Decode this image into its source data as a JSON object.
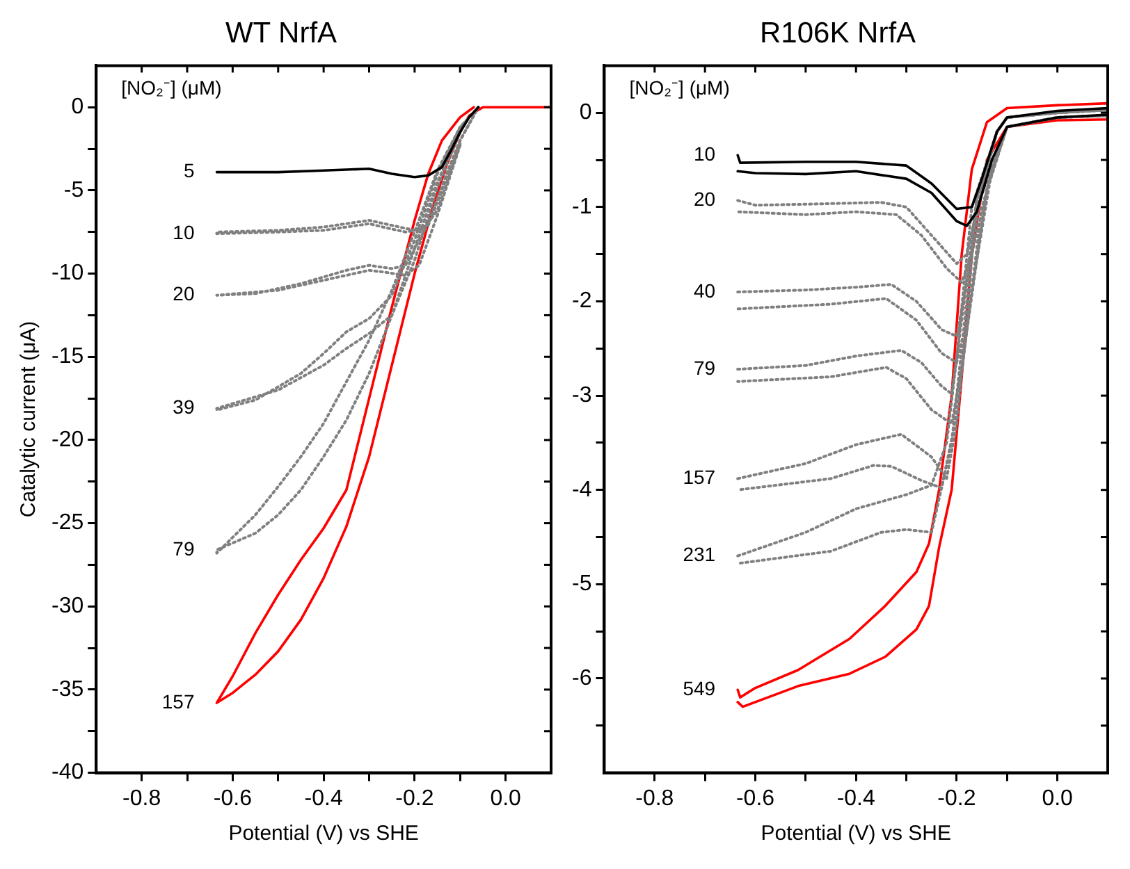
{
  "chart_data": [
    {
      "type": "line",
      "title": "WT NrfA",
      "xlabel": "Potential (V) vs SHE",
      "ylabel": "Catalytic current (μA)",
      "legend_title": "[NO₂⁻] (μM)",
      "grid": false,
      "xlim": [
        -0.9,
        0.1
      ],
      "xticks": [
        {
          "value": -0.8,
          "label": "-0.8"
        },
        {
          "value": -0.7,
          "label": null
        },
        {
          "value": -0.6,
          "label": "-0.6"
        },
        {
          "value": -0.5,
          "label": null
        },
        {
          "value": -0.4,
          "label": "-0.4"
        },
        {
          "value": -0.3,
          "label": null
        },
        {
          "value": -0.2,
          "label": "-0.2"
        },
        {
          "value": -0.1,
          "label": null
        },
        {
          "value": 0,
          "label": "0.0"
        }
      ],
      "ylim": [
        -40,
        2.5
      ],
      "yticks": [
        -40,
        {
          "value": -37.5,
          "label": null
        },
        -35,
        {
          "value": -32.5,
          "label": null
        },
        -30,
        {
          "value": -27.5,
          "label": null
        },
        -25,
        {
          "value": -22.5,
          "label": null
        },
        -20,
        {
          "value": -17.5,
          "label": null
        },
        -15,
        {
          "value": -12.5,
          "label": null
        },
        -10,
        {
          "value": -7.5,
          "label": null
        },
        -5,
        {
          "value": -2.5,
          "label": null
        },
        0
      ],
      "series": [
        {
          "name": "5",
          "color": "#000000",
          "line_style": "solid",
          "x": [
            -0.635,
            -0.5,
            -0.4,
            -0.3,
            -0.25,
            -0.2,
            -0.17,
            -0.14,
            -0.12,
            -0.1,
            -0.08,
            -0.06
          ],
          "values": [
            -3.9,
            -3.9,
            -3.8,
            -3.7,
            -4,
            -4.2,
            -4.1,
            -3.6,
            -2.6,
            -1.5,
            -0.6,
            0
          ]
        },
        {
          "name": "10",
          "color": "#808080",
          "line_style": "dotted",
          "x": [
            -0.1,
            -0.15,
            -0.18,
            -0.22,
            -0.27,
            -0.3,
            -0.4,
            -0.5,
            -0.635,
            -0.635,
            -0.5,
            -0.4,
            -0.3,
            -0.25,
            -0.2,
            -0.17,
            -0.14,
            -0.1,
            -0.06
          ],
          "values": [
            -2.2,
            -6.2,
            -7.3,
            -7.5,
            -7.2,
            -7,
            -7.4,
            -7.5,
            -7.6,
            -7.5,
            -7.4,
            -7.2,
            -6.8,
            -7.1,
            -7.4,
            -7.1,
            -5,
            -2,
            0
          ]
        },
        {
          "name": "20",
          "color": "#808080",
          "line_style": "dotted",
          "x": [
            -0.1,
            -0.15,
            -0.19,
            -0.22,
            -0.27,
            -0.3,
            -0.4,
            -0.5,
            -0.635,
            -0.635,
            -0.55,
            -0.45,
            -0.35,
            -0.3,
            -0.25,
            -0.22,
            -0.17,
            -0.13,
            -0.1,
            -0.06
          ],
          "values": [
            -2.3,
            -6.5,
            -9.5,
            -10.1,
            -9.9,
            -9.8,
            -10.4,
            -11,
            -11.3,
            -11.3,
            -11.2,
            -10.6,
            -9.8,
            -9.5,
            -9.7,
            -9.5,
            -7,
            -4,
            -2,
            0
          ]
        },
        {
          "name": "39",
          "color": "#808080",
          "line_style": "dotted",
          "x": [
            -0.1,
            -0.15,
            -0.2,
            -0.25,
            -0.3,
            -0.35,
            -0.4,
            -0.5,
            -0.635,
            -0.635,
            -0.55,
            -0.45,
            -0.4,
            -0.35,
            -0.3,
            -0.25,
            -0.2,
            -0.15,
            -0.1,
            -0.06
          ],
          "values": [
            -1.5,
            -4.8,
            -9.2,
            -12.5,
            -13.6,
            -14.5,
            -15.5,
            -17,
            -18.1,
            -18.2,
            -17.6,
            -16,
            -14.8,
            -13.5,
            -12.7,
            -11.3,
            -8,
            -4,
            -1.2,
            0
          ]
        },
        {
          "name": "79",
          "color": "#808080",
          "line_style": "dotted",
          "x": [
            -0.1,
            -0.15,
            -0.2,
            -0.25,
            -0.3,
            -0.35,
            -0.4,
            -0.45,
            -0.5,
            -0.55,
            -0.635,
            -0.635,
            -0.55,
            -0.5,
            -0.45,
            -0.4,
            -0.35,
            -0.3,
            -0.25,
            -0.2,
            -0.15,
            -0.1,
            -0.06
          ],
          "values": [
            -1.5,
            -4.5,
            -8.5,
            -12.5,
            -16,
            -18.8,
            -21,
            -23,
            -24.5,
            -25.6,
            -26.6,
            -26.8,
            -24.5,
            -22.8,
            -21,
            -19,
            -16.5,
            -14,
            -11,
            -7.5,
            -3.8,
            -1.2,
            0
          ]
        },
        {
          "name": "157",
          "color": "#ff0000",
          "line_style": "solid",
          "x": [
            -0.07,
            -0.1,
            -0.14,
            -0.17,
            -0.2,
            -0.25,
            -0.3,
            -0.35,
            -0.4,
            -0.45,
            -0.5,
            -0.55,
            -0.6,
            -0.635,
            -0.6,
            -0.55,
            -0.5,
            -0.45,
            -0.4,
            -0.35,
            -0.3,
            -0.25,
            -0.2,
            -0.16,
            -0.13,
            -0.1,
            -0.08,
            -0.05,
            0,
            0.1
          ],
          "values": [
            0,
            -0.6,
            -2,
            -4,
            -6.8,
            -12,
            -17.5,
            -23,
            -25.3,
            -27.2,
            -29.3,
            -31.6,
            -34.2,
            -35.8,
            -35.2,
            -34.1,
            -32.7,
            -30.8,
            -28.3,
            -25.2,
            -21,
            -15.5,
            -10,
            -6,
            -3.5,
            -1.5,
            -0.5,
            0,
            0,
            0
          ]
        }
      ]
    },
    {
      "type": "line",
      "title": "R106K NrfA",
      "xlabel": "Potential (V) vs SHE",
      "legend_title": "[NO₂⁻] (μM)",
      "grid": false,
      "xlim": [
        -0.9,
        0.1
      ],
      "xticks": [
        {
          "value": -0.8,
          "label": "-0.8"
        },
        {
          "value": -0.7,
          "label": null
        },
        {
          "value": -0.6,
          "label": "-0.6"
        },
        {
          "value": -0.5,
          "label": null
        },
        {
          "value": -0.4,
          "label": "-0.4"
        },
        {
          "value": -0.3,
          "label": null
        },
        {
          "value": -0.2,
          "label": "-0.2"
        },
        {
          "value": -0.1,
          "label": null
        },
        {
          "value": 0,
          "label": "0.0"
        }
      ],
      "ylim": [
        -7,
        0.5
      ],
      "yticks": [
        {
          "value": -6.5,
          "label": null
        },
        -6,
        {
          "value": -5.5,
          "label": null
        },
        -5,
        {
          "value": -4.5,
          "label": null
        },
        -4,
        {
          "value": -3.5,
          "label": null
        },
        -3,
        {
          "value": -2.5,
          "label": null
        },
        -2,
        {
          "value": -1.5,
          "label": null
        },
        -1,
        {
          "value": -0.5,
          "label": null
        },
        0
      ],
      "series": [
        {
          "name": "10",
          "color": "#000000",
          "line_style": "solid",
          "x": [
            -0.635,
            -0.63,
            -0.5,
            -0.4,
            -0.3,
            -0.25,
            -0.2,
            -0.17,
            -0.15,
            -0.12,
            -0.1,
            0,
            0.1,
            0.1,
            0,
            -0.1,
            -0.13,
            -0.16,
            -0.18,
            -0.2,
            -0.25,
            -0.3,
            -0.4,
            -0.5,
            -0.6,
            -0.635
          ],
          "values": [
            -0.45,
            -0.53,
            -0.52,
            -0.52,
            -0.56,
            -0.75,
            -1.02,
            -1,
            -0.7,
            -0.2,
            -0.05,
            0.02,
            0.05,
            -0.02,
            -0.05,
            -0.15,
            -0.5,
            -1.05,
            -1.2,
            -1.15,
            -0.85,
            -0.7,
            -0.62,
            -0.65,
            -0.64,
            -0.62
          ]
        },
        {
          "name": "20",
          "color": "#808080",
          "line_style": "dotted",
          "x": [
            -0.635,
            -0.6,
            -0.5,
            -0.35,
            -0.3,
            -0.25,
            -0.2,
            -0.18,
            -0.15,
            -0.12,
            -0.1,
            0,
            0.1,
            0.1,
            0,
            -0.1,
            -0.13,
            -0.17,
            -0.19,
            -0.22,
            -0.27,
            -0.32,
            -0.4,
            -0.5,
            -0.635
          ],
          "values": [
            -0.93,
            -0.98,
            -0.97,
            -0.95,
            -1,
            -1.3,
            -1.6,
            -1.5,
            -0.8,
            -0.2,
            -0.05,
            0,
            0.03,
            -0.03,
            -0.05,
            -0.15,
            -0.6,
            -1.5,
            -1.8,
            -1.65,
            -1.3,
            -1.08,
            -1.05,
            -1.08,
            -1.05
          ]
        },
        {
          "name": "40",
          "color": "#808080",
          "line_style": "dotted",
          "x": [
            -0.635,
            -0.5,
            -0.4,
            -0.33,
            -0.28,
            -0.23,
            -0.2,
            -0.18,
            -0.15,
            -0.12,
            -0.1,
            0,
            0.1,
            0.1,
            0,
            -0.1,
            -0.13,
            -0.18,
            -0.2,
            -0.23,
            -0.28,
            -0.34,
            -0.45,
            -0.635
          ],
          "values": [
            -1.9,
            -1.88,
            -1.85,
            -1.82,
            -2,
            -2.3,
            -2.37,
            -1.8,
            -0.8,
            -0.2,
            -0.05,
            0,
            0.03,
            -0.03,
            -0.05,
            -0.15,
            -0.6,
            -2.2,
            -2.65,
            -2.55,
            -2.2,
            -1.97,
            -2.03,
            -2.08
          ]
        },
        {
          "name": "79",
          "color": "#808080",
          "line_style": "dotted",
          "x": [
            -0.635,
            -0.5,
            -0.4,
            -0.31,
            -0.27,
            -0.23,
            -0.21,
            -0.19,
            -0.16,
            -0.12,
            -0.1,
            0,
            0.1,
            0.1,
            0,
            -0.1,
            -0.14,
            -0.19,
            -0.21,
            -0.25,
            -0.3,
            -0.34,
            -0.45,
            -0.635
          ],
          "values": [
            -2.72,
            -2.68,
            -2.58,
            -2.52,
            -2.65,
            -2.9,
            -2.98,
            -2.2,
            -0.9,
            -0.2,
            -0.05,
            0,
            0.03,
            -0.03,
            -0.05,
            -0.15,
            -0.8,
            -2.7,
            -3.3,
            -3.15,
            -2.82,
            -2.7,
            -2.8,
            -2.85
          ]
        },
        {
          "name": "157",
          "color": "#808080",
          "line_style": "dotted",
          "x": [
            -0.635,
            -0.5,
            -0.4,
            -0.31,
            -0.25,
            -0.22,
            -0.2,
            -0.18,
            -0.16,
            -0.12,
            -0.1,
            0,
            0.1,
            0.1,
            0,
            -0.1,
            -0.15,
            -0.2,
            -0.23,
            -0.27,
            -0.33,
            -0.365,
            -0.45,
            -0.635
          ],
          "values": [
            -3.88,
            -3.72,
            -3.52,
            -3.41,
            -3.65,
            -3.88,
            -3.3,
            -2.2,
            -0.9,
            -0.2,
            -0.05,
            0,
            0.03,
            -0.03,
            -0.05,
            -0.15,
            -1,
            -3.2,
            -3.98,
            -3.9,
            -3.75,
            -3.74,
            -3.88,
            -4
          ]
        },
        {
          "name": "231",
          "color": "#808080",
          "line_style": "dotted",
          "x": [
            -0.635,
            -0.5,
            -0.4,
            -0.3,
            -0.25,
            -0.22,
            -0.2,
            -0.17,
            -0.12,
            -0.1,
            0,
            0.1,
            0.1,
            0,
            -0.1,
            -0.16,
            -0.21,
            -0.25,
            -0.3,
            -0.35,
            -0.45,
            -0.635
          ],
          "values": [
            -4.7,
            -4.45,
            -4.2,
            -4.05,
            -3.95,
            -3.5,
            -2.6,
            -1,
            -0.2,
            -0.05,
            0,
            0.03,
            -0.03,
            -0.05,
            -0.15,
            -1,
            -3.5,
            -4.45,
            -4.42,
            -4.45,
            -4.65,
            -4.78
          ]
        },
        {
          "name": "549",
          "color": "#ff0000",
          "line_style": "solid",
          "x": [
            -0.635,
            -0.63,
            -0.6,
            -0.515,
            -0.413,
            -0.342,
            -0.28,
            -0.255,
            -0.235,
            -0.21,
            -0.19,
            -0.17,
            -0.14,
            -0.1,
            0,
            0.1,
            0.1,
            0,
            -0.1,
            -0.14,
            -0.17,
            -0.19,
            -0.21,
            -0.235,
            -0.255,
            -0.28,
            -0.342,
            -0.413,
            -0.515,
            -0.625,
            -0.635
          ],
          "values": [
            -6.12,
            -6.2,
            -6.1,
            -5.91,
            -5.58,
            -5.23,
            -4.87,
            -4.57,
            -4,
            -3,
            -1.5,
            -0.6,
            -0.1,
            0.05,
            0.08,
            0.1,
            -0.07,
            -0.08,
            -0.15,
            -0.5,
            -1.5,
            -2.8,
            -4,
            -4.61,
            -5.23,
            -5.48,
            -5.77,
            -5.95,
            -6.08,
            -6.3,
            -6.25
          ]
        }
      ]
    }
  ]
}
